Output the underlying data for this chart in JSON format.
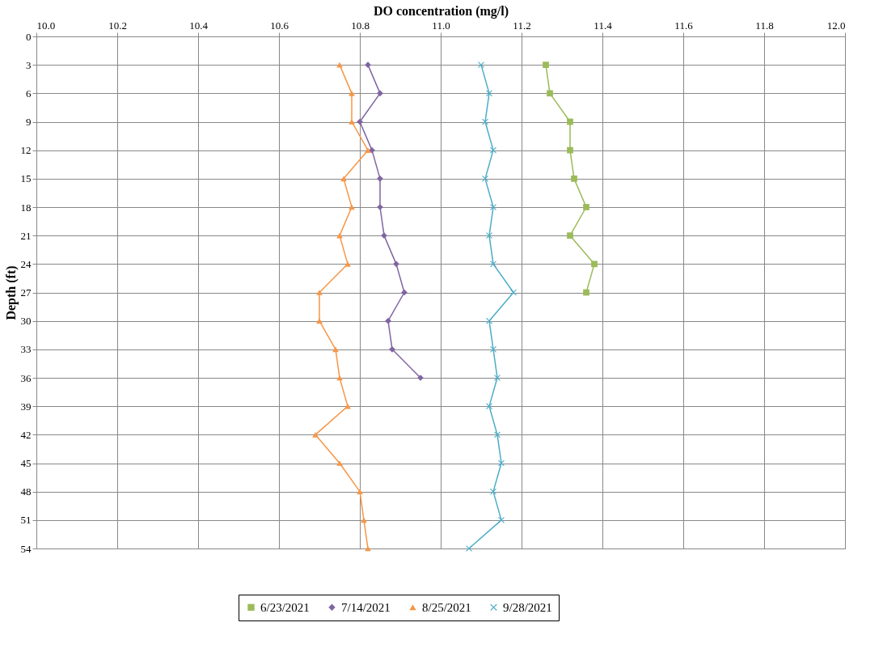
{
  "chart_data": {
    "type": "line",
    "orientation": "horizontal",
    "xlabel": "DO concentration (mg/l)",
    "ylabel": "Depth (ft)",
    "categories": [
      "0",
      "3",
      "6",
      "9",
      "12",
      "15",
      "18",
      "21",
      "24",
      "27",
      "30",
      "33",
      "36",
      "39",
      "42",
      "45",
      "48",
      "51",
      "54"
    ],
    "xlim": [
      10.0,
      12.0
    ],
    "xticks": [
      {
        "value": 10.0,
        "label": "10.0"
      },
      {
        "value": 10.2,
        "label": "10.2"
      },
      {
        "value": 10.4,
        "label": "10.4"
      },
      {
        "value": 10.6,
        "label": "10.6"
      },
      {
        "value": 10.8,
        "label": "10.8"
      },
      {
        "value": 11.0,
        "label": "11.0"
      },
      {
        "value": 11.2,
        "label": "11.2"
      },
      {
        "value": 11.4,
        "label": "11.4"
      },
      {
        "value": 11.6,
        "label": "11.6"
      },
      {
        "value": 11.8,
        "label": "11.8"
      },
      {
        "value": 12.0,
        "label": "12.0"
      }
    ],
    "grid": true,
    "legend": "bottom",
    "series": [
      {
        "name": "6/23/2021",
        "color": "#9bbb59",
        "marker": "square",
        "values": [
          null,
          11.26,
          11.27,
          11.32,
          11.32,
          11.33,
          11.36,
          11.32,
          11.38,
          11.36,
          null,
          null,
          null,
          null,
          null,
          null,
          null,
          null,
          null
        ]
      },
      {
        "name": "7/14/2021",
        "color": "#8064a2",
        "marker": "diamond",
        "values": [
          null,
          10.82,
          10.85,
          10.8,
          10.83,
          10.85,
          10.85,
          10.86,
          10.89,
          10.91,
          10.87,
          10.88,
          10.95,
          null,
          null,
          null,
          null,
          null,
          null
        ]
      },
      {
        "name": "8/25/2021",
        "color": "#f79646",
        "marker": "triangle",
        "values": [
          null,
          10.75,
          10.78,
          10.78,
          10.82,
          10.76,
          10.78,
          10.75,
          10.77,
          10.7,
          10.7,
          10.74,
          10.75,
          10.77,
          10.69,
          10.75,
          10.8,
          10.81,
          10.82
        ]
      },
      {
        "name": "9/28/2021",
        "color": "#4bacc6",
        "marker": "cross",
        "values": [
          null,
          11.1,
          11.12,
          11.11,
          11.13,
          11.11,
          11.13,
          11.12,
          11.13,
          11.18,
          11.12,
          11.13,
          11.14,
          11.12,
          11.14,
          11.15,
          11.13,
          11.15,
          11.07
        ]
      }
    ]
  }
}
